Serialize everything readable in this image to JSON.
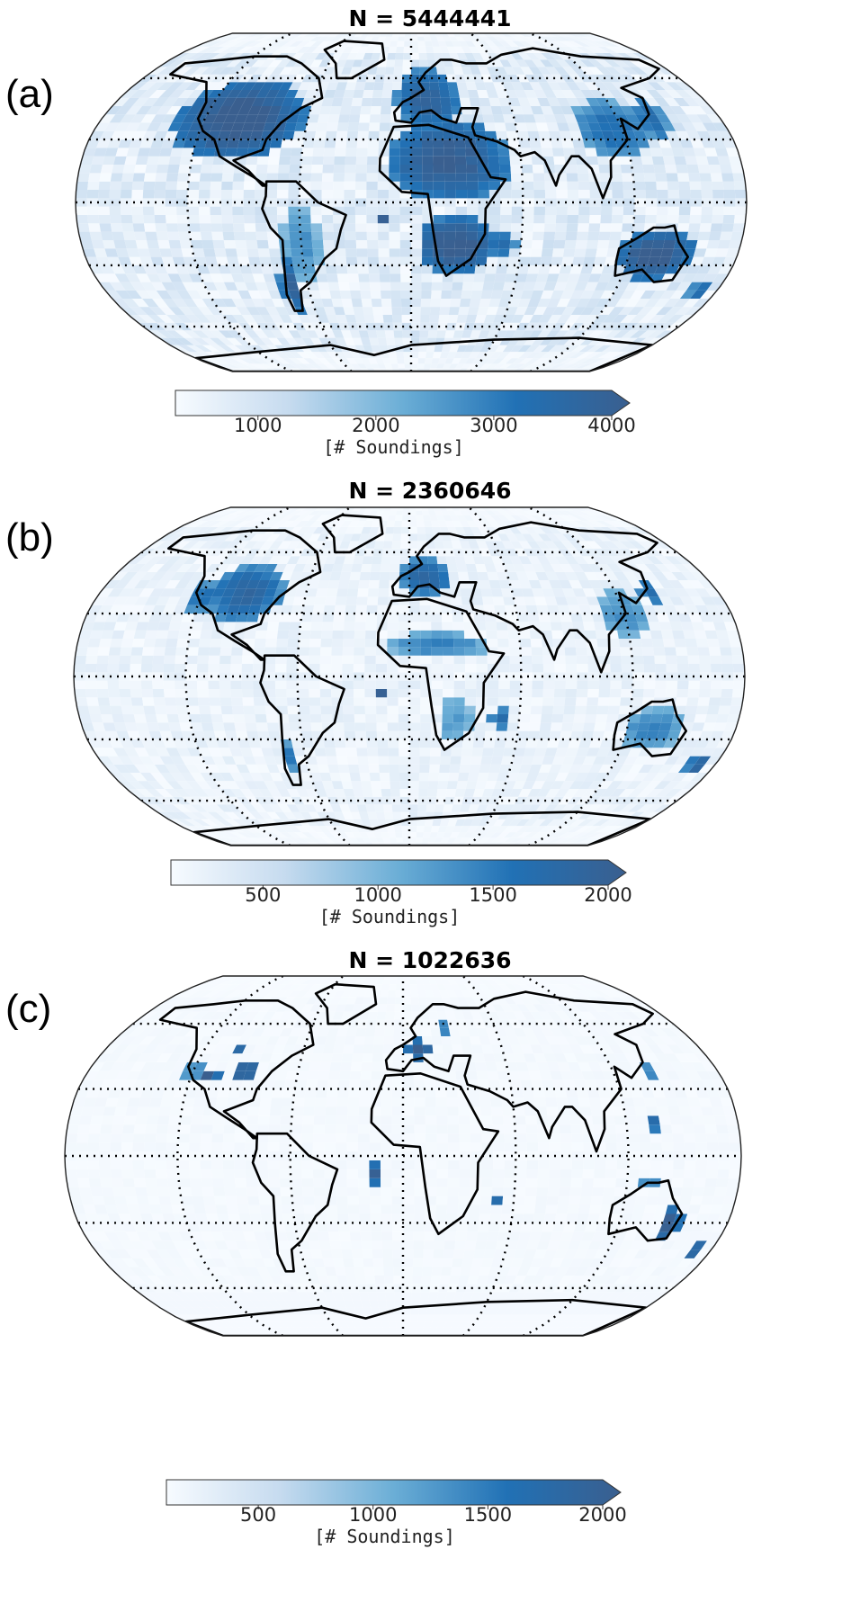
{
  "figure": {
    "colorbar_colors": [
      "#f7fbff",
      "#c6dbef",
      "#6baed6",
      "#2171b5",
      "#3a5f8f"
    ],
    "land_color": "#3d6591",
    "ocean_bg_color": "#f2f7fc",
    "coastline_color": "#000000"
  },
  "panels": [
    {
      "label": "(a)",
      "title": "N = 5444441",
      "colorbar": {
        "ticks": [
          "1000",
          "2000",
          "3000",
          "4000"
        ],
        "tick_values": [
          1000,
          2000,
          3000,
          4000
        ],
        "min": 300,
        "max": 4000,
        "label": "[# Soundings]",
        "extend": "max"
      },
      "density": "high"
    },
    {
      "label": "(b)",
      "title": "N = 2360646",
      "colorbar": {
        "ticks": [
          "500",
          "1000",
          "1500",
          "2000"
        ],
        "tick_values": [
          500,
          1000,
          1500,
          2000
        ],
        "min": 100,
        "max": 2000,
        "label": "[# Soundings]",
        "extend": "max"
      },
      "density": "medium"
    },
    {
      "label": "(c)",
      "title": "N = 1022636",
      "colorbar": {
        "ticks": [
          "500",
          "1000",
          "1500",
          "2000"
        ],
        "tick_values": [
          500,
          1000,
          1500,
          2000
        ],
        "min": 100,
        "max": 2000,
        "label": "[# Soundings]",
        "extend": "max"
      },
      "density": "low"
    }
  ],
  "chart_data": [
    {
      "type": "heatmap",
      "projection": "robinson",
      "title": "N = 5444441",
      "colorbar_label": "[# Soundings]",
      "colorbar_range": [
        300,
        4000
      ],
      "hotspots": [
        "North America",
        "Europe",
        "Sahara",
        "Southern Africa",
        "Australia",
        "East Asia",
        "western South America"
      ]
    },
    {
      "type": "heatmap",
      "projection": "robinson",
      "title": "N = 2360646",
      "colorbar_label": "[# Soundings]",
      "colorbar_range": [
        100,
        2000
      ],
      "hotspots": [
        "North America",
        "Europe",
        "Sahel",
        "Australia",
        "East Asia",
        "Madagascar"
      ]
    },
    {
      "type": "heatmap",
      "projection": "robinson",
      "title": "N = 1022636",
      "colorbar_label": "[# Soundings]",
      "colorbar_range": [
        100,
        2000
      ],
      "hotspots": [
        "western USA",
        "central Europe",
        "Japan",
        "Philippines",
        "southeast Australia",
        "Madagascar",
        "Atlantic near Ascension"
      ]
    }
  ]
}
